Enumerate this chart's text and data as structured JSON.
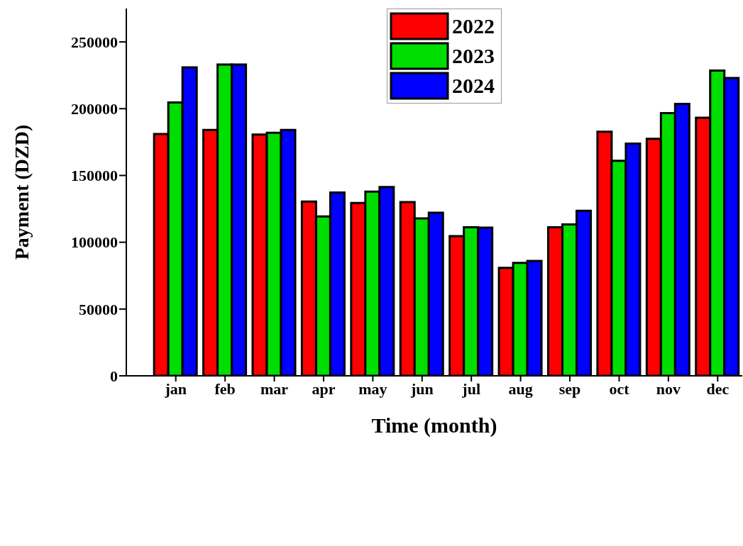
{
  "chart_data": {
    "type": "bar",
    "xlabel": "Time (month)",
    "ylabel": "Payment (DZD)",
    "categories": [
      "jan",
      "feb",
      "mar",
      "apr",
      "may",
      "jun",
      "jul",
      "aug",
      "sep",
      "oct",
      "nov",
      "dec"
    ],
    "series": [
      {
        "name": "2022",
        "color": "#ff0000",
        "values": [
          181000,
          184100,
          180600,
          130500,
          129400,
          130100,
          104600,
          80800,
          111200,
          182700,
          177400,
          193200
        ]
      },
      {
        "name": "2023",
        "color": "#00dd00",
        "values": [
          204700,
          233100,
          182000,
          119300,
          137900,
          117900,
          111200,
          84500,
          113400,
          161000,
          196700,
          228500
        ]
      },
      {
        "name": "2024",
        "color": "#0000ff",
        "values": [
          231000,
          233100,
          184100,
          137200,
          141300,
          122100,
          111000,
          86000,
          123500,
          173900,
          203600,
          223000
        ]
      }
    ],
    "ylim": [
      0,
      275000
    ],
    "yticks": [
      0,
      50000,
      100000,
      150000,
      200000,
      250000
    ],
    "grid": false,
    "legend": "top"
  }
}
